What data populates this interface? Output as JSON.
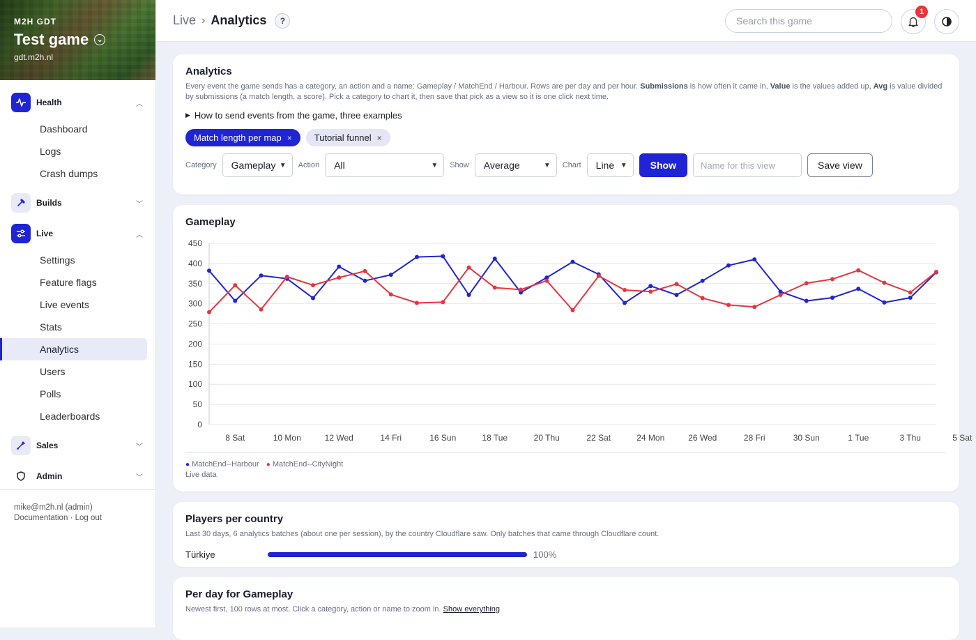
{
  "sidebar": {
    "org": "M2H GDT",
    "game_name": "Test game",
    "game_domain": "gdt.m2h.nl",
    "groups": {
      "health": {
        "label": "Health",
        "items": [
          "Dashboard",
          "Logs",
          "Crash dumps"
        ]
      },
      "builds": {
        "label": "Builds"
      },
      "live": {
        "label": "Live",
        "items": [
          "Settings",
          "Feature flags",
          "Live events",
          "Stats",
          "Analytics",
          "Users",
          "Polls",
          "Leaderboards"
        ]
      },
      "sales": {
        "label": "Sales"
      },
      "admin": {
        "label": "Admin"
      }
    },
    "active_item": "Analytics",
    "footer": {
      "user": "mike@m2h.nl (admin)",
      "docs": "Documentation",
      "sep": " · ",
      "logout": "Log out"
    }
  },
  "topbar": {
    "breadcrumb": [
      "Live",
      "Analytics"
    ],
    "help": "?",
    "search_placeholder": "Search this game",
    "notification_count": "1"
  },
  "analytics": {
    "title": "Analytics",
    "desc": {
      "p1": "Every event the game sends has a category, an action and a name: Gameplay / MatchEnd / Harbour. Rows are per day and per hour. ",
      "b1": "Submissions",
      "p2": " is how often it came in, ",
      "b2": "Value",
      "p3": " is the values added up, ",
      "b3": "Avg",
      "p4": " is value divided by submissions (a match length, a score). Pick a category to chart it, then save that pick as a view so it is one click next time."
    },
    "howto": "How to send events from the game, three examples",
    "views": [
      {
        "label": "Match length per map",
        "active": true
      },
      {
        "label": "Tutorial funnel",
        "active": false
      }
    ],
    "controls": {
      "category_label": "Category",
      "category_value": "Gameplay",
      "action_label": "Action",
      "action_value": "All",
      "show_label": "Show",
      "show_value": "Average",
      "chart_label": "Chart",
      "chart_value": "Line",
      "show_button": "Show",
      "view_name_placeholder": "Name for this view",
      "save_button": "Save view"
    }
  },
  "chart_data": {
    "type": "line",
    "title": "Gameplay",
    "x_tick_labels": [
      "8 Sat",
      "10 Mon",
      "12 Wed",
      "14 Fri",
      "16 Sun",
      "18 Tue",
      "20 Thu",
      "22 Sat",
      "24 Mon",
      "26 Wed",
      "28 Fri",
      "30 Sun",
      "1 Tue",
      "3 Thu",
      "5 Sat"
    ],
    "ylim": [
      0,
      450
    ],
    "y_ticks": [
      450,
      400,
      350,
      300,
      250,
      200,
      150,
      100,
      50,
      0
    ],
    "x_count": 29,
    "series": [
      {
        "name": "MatchEnd--Harbour",
        "color": "#1f24d4",
        "values": [
          382,
          307,
          370,
          362,
          314,
          392,
          357,
          372,
          416,
          418,
          322,
          412,
          328,
          365,
          404,
          373,
          302,
          344,
          322,
          357,
          395,
          410,
          330,
          307,
          315,
          337,
          303,
          315,
          378
        ]
      },
      {
        "name": "MatchEnd--CityNight",
        "color": "#e8343d",
        "values": [
          279,
          346,
          286,
          367,
          346,
          365,
          381,
          323,
          302,
          304,
          390,
          340,
          335,
          357,
          284,
          369,
          334,
          330,
          349,
          314,
          297,
          292,
          322,
          351,
          361,
          383,
          352,
          328,
          379
        ]
      }
    ],
    "live_data": "Live data",
    "grid": true,
    "legend": "bottom-left"
  },
  "countries": {
    "title": "Players per country",
    "desc": "Last 30 days, 6 analytics batches (about one per session), by the country Cloudflare saw. Only batches that came through Cloudflare count.",
    "rows": [
      {
        "country": "Türkiye",
        "share": 1.0,
        "pct": "100%"
      }
    ]
  },
  "perday": {
    "title": "Per day for Gameplay",
    "desc": "Newest first, 100 rows at most. Click a category, action or name to zoom in. ",
    "link": "Show everything"
  }
}
